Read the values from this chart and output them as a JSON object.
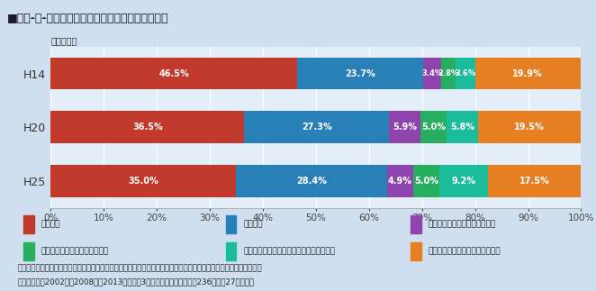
{
  "title": "■第１-１-８図／大学等職員の研究時間割合の推移",
  "subtitle": "（調査年）",
  "categories": [
    "H14",
    "H20",
    "H25"
  ],
  "series": [
    {
      "label": "研究活動",
      "color": "#C0392B",
      "values": [
        46.5,
        36.5,
        35.0
      ]
    },
    {
      "label": "教育活動",
      "color": "#2980B9",
      "values": [
        23.7,
        27.3,
        28.4
      ]
    },
    {
      "label": "社会サービス活動（研究関連）",
      "color": "#8E44AD",
      "values": [
        3.4,
        5.9,
        4.9
      ]
    },
    {
      "label": "社会サービス活動（教育関連）",
      "color": "#27AE60",
      "values": [
        2.8,
        5.0,
        5.0
      ]
    },
    {
      "label": "社会サービス活動（その他：診療活動等）",
      "color": "#1ABC9C",
      "values": [
        3.6,
        5.8,
        9.2
      ]
    },
    {
      "label": "その他の職務活動（学内事務等）",
      "color": "#E67E22",
      "values": [
        19.9,
        19.5,
        17.5
      ]
    }
  ],
  "caption_line1": "資料：科学技術・学術政策研究所「大学等教員の職務活動の変化－「大学等におけるフルタイム換算データに関する調",
  "caption_line2": "　査」による2002年、2008年、2013年調査の3時点比較－」調査資料－236（平成27年４月）",
  "bg_color": "#D0DFF0",
  "plot_bg_color": "#E4EEF8",
  "title_bg_color": "#B8D0E8",
  "bar_height": 0.6
}
